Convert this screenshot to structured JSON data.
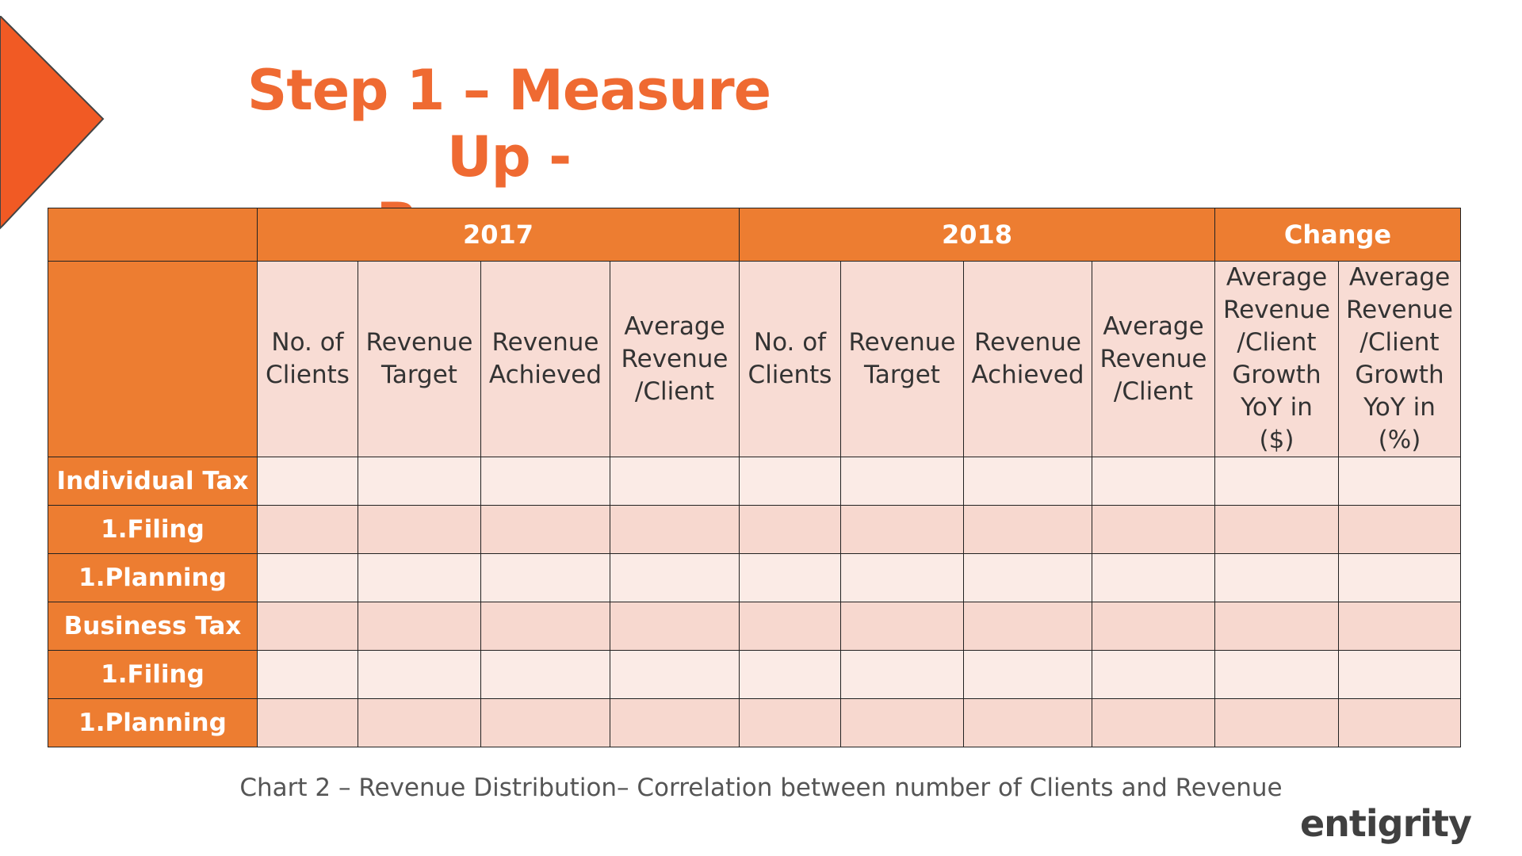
{
  "slide": {
    "title": [
      "Step 1 – Measure Up -",
      "Revenue"
    ],
    "table": {
      "groups": [
        "2017",
        "2018",
        "Change"
      ],
      "columns": [
        "No. of\nClients",
        "Revenue\nTarget",
        "Revenue\nAchieved",
        "Average\nRevenue\n/Client",
        "No. of\nClients",
        "Revenue\nTarget",
        "Revenue\nAchieved",
        "Average\nRevenue\n/Client",
        "Average\nRevenue\n/Client\nGrowth\nYoY in\n($)",
        "Average\nRevenue\n/Client\nGrowth\nYoY in\n(%)"
      ],
      "rows": [
        "Individual Tax",
        "1.Filing",
        "1.Planning",
        "Business Tax",
        "1.Filing",
        "1.Planning"
      ]
    },
    "caption": "Chart 2 – Revenue Distribution– Correlation between number of Clients and Revenue",
    "logo": "entigrity"
  }
}
